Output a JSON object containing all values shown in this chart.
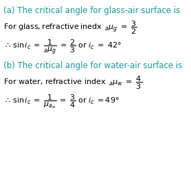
{
  "bg_color": "#ffffff",
  "teal_color": "#1a9aa0",
  "black_color": "#000000",
  "figsize": [
    2.78,
    2.47
  ],
  "dpi": 100,
  "title_a": "(a) The critical angle for glass-air surface is",
  "title_b": "(b) The critical angle for water-air surface is"
}
